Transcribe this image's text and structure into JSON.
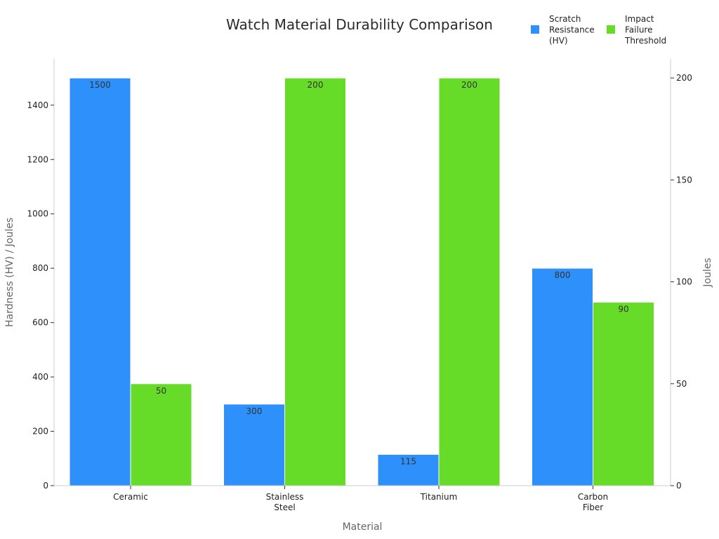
{
  "chart_data": {
    "type": "bar",
    "title": "Watch Material Durability Comparison",
    "xlabel": "Material",
    "ylabel_left": "Hardness (HV) / Joules",
    "ylabel_right": "Joules",
    "categories": [
      [
        "Ceramic"
      ],
      [
        "Stainless",
        "Steel"
      ],
      [
        "Titanium"
      ],
      [
        "Carbon",
        "Fiber"
      ]
    ],
    "y_left": {
      "range": [
        0,
        1570
      ],
      "ticks": [
        0,
        200,
        400,
        600,
        800,
        1000,
        1200,
        1400
      ]
    },
    "y_right": {
      "range": [
        0,
        209.33
      ],
      "ticks": [
        0,
        50,
        100,
        150,
        200
      ]
    },
    "series": [
      {
        "name_lines": [
          "Scratch",
          "Resistance",
          "(HV)"
        ],
        "axis": "left",
        "color": "#2e90fa",
        "values": [
          1500,
          300,
          115,
          800
        ],
        "labels": [
          "1500",
          "300",
          "115",
          "800"
        ]
      },
      {
        "name_lines": [
          "Impact",
          "Failure",
          "Threshold"
        ],
        "axis": "right",
        "color": "#66db28",
        "values": [
          50,
          200,
          200,
          90
        ],
        "labels": [
          "50",
          "200",
          "200",
          "90"
        ]
      }
    ],
    "legend": "top-right",
    "grid": false
  }
}
